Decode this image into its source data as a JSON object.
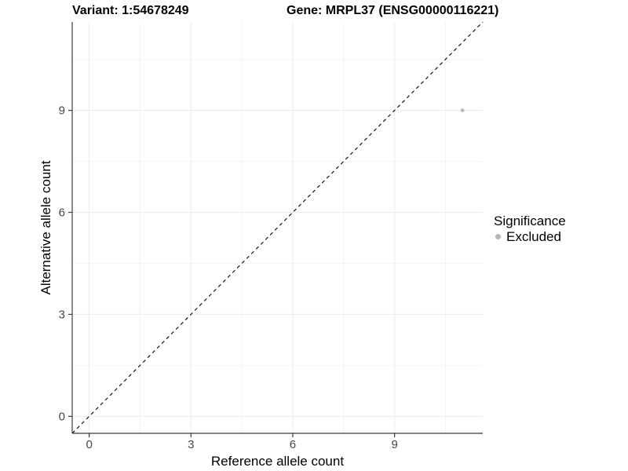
{
  "chart_data": {
    "type": "scatter",
    "title_left": "Variant: 1:54678249",
    "title_right": "Gene: MRPL37 (ENSG00000116221)",
    "xlabel": "Reference allele count",
    "ylabel": "Alternative allele count",
    "xlim": [
      -0.5,
      11.6
    ],
    "ylim": [
      -0.5,
      11.6
    ],
    "xticks": [
      0,
      3,
      6,
      9
    ],
    "yticks": [
      0,
      3,
      6,
      9
    ],
    "minor_gridlines_x": [
      1.5,
      4.5,
      7.5,
      10.5
    ],
    "minor_gridlines_y": [
      1.5,
      4.5,
      7.5,
      10.5
    ],
    "grid": "on",
    "series": [
      {
        "name": "Excluded",
        "color": "#b8b8b8",
        "points": [
          {
            "x": 11,
            "y": 9
          }
        ]
      }
    ],
    "reference_line": {
      "kind": "identity",
      "slope": 1,
      "intercept": 0,
      "linetype": "dashed",
      "color": "#000000"
    },
    "legend": {
      "title": "Significance",
      "position": "right",
      "entries": [
        {
          "label": "Excluded",
          "color": "#b8b8b8"
        }
      ]
    },
    "style": {
      "axis_line_color": "#3c3c3c",
      "tick_color": "#3c3c3c",
      "tick_label_color": "#464646",
      "grid_major_color": "#ebebeb",
      "grid_minor_color": "#f4f4f4",
      "point_radius": 2.3
    }
  }
}
